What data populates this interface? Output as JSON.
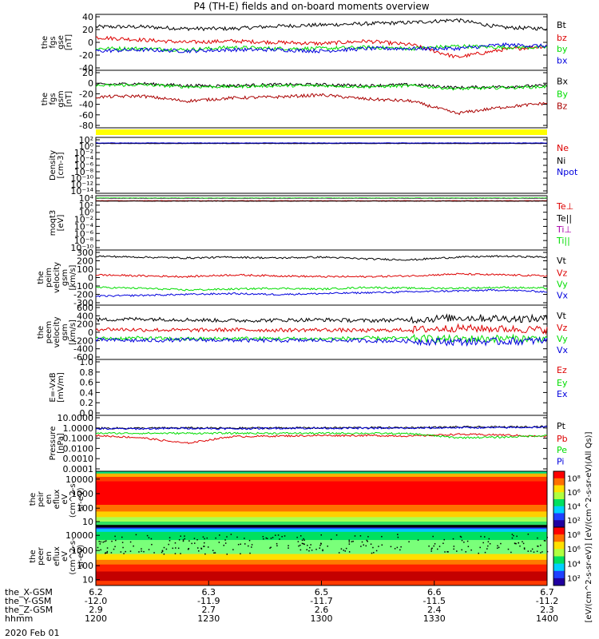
{
  "title": "P4 (TH-E) fields and on-board moments overview",
  "date": "2020 Feb 01",
  "chart_data": [
    {
      "id": "fgs_gse",
      "type": "line",
      "ylabel": [
        "the",
        "fgs",
        "gse",
        "[nT]"
      ],
      "yticks": [
        40,
        20,
        0,
        -20,
        -40
      ],
      "ylim": [
        -45,
        45
      ],
      "series": [
        {
          "name": "Bt",
          "color": "#000000",
          "base": [
            25,
            25,
            22,
            22,
            26,
            28,
            30,
            32,
            36,
            24,
            22
          ]
        },
        {
          "name": "bz",
          "color": "#dd0000",
          "base": [
            8,
            4,
            0,
            2,
            0,
            -2,
            2,
            -4,
            -24,
            -12,
            -6
          ]
        },
        {
          "name": "by",
          "color": "#00dd00",
          "base": [
            -10,
            -10,
            -12,
            -8,
            -10,
            -10,
            -8,
            -10,
            -6,
            -8,
            -8
          ]
        },
        {
          "name": "bx",
          "color": "#0000dd",
          "base": [
            -14,
            -12,
            -14,
            -12,
            -12,
            -14,
            -10,
            -10,
            -10,
            -4,
            -6
          ]
        }
      ]
    },
    {
      "id": "fgs_gsm",
      "type": "line",
      "ylabel": [
        "the",
        "fgs",
        "gsm",
        "[nT]"
      ],
      "yticks": [
        20,
        0,
        -20,
        -40,
        -60,
        -80
      ],
      "ylim": [
        -90,
        22
      ],
      "series": [
        {
          "name": "Bx",
          "color": "#000000",
          "base": [
            -6,
            -4,
            -8,
            -8,
            -6,
            -6,
            -8,
            -6,
            -12,
            -10,
            -8
          ]
        },
        {
          "name": "By",
          "color": "#00dd00",
          "base": [
            -8,
            -6,
            -10,
            -10,
            -8,
            -8,
            -10,
            -8,
            -14,
            -12,
            -10
          ]
        },
        {
          "name": "Bz",
          "color": "#aa0000",
          "base": [
            -30,
            -28,
            -38,
            -32,
            -30,
            -26,
            -34,
            -38,
            -62,
            -50,
            -42
          ]
        }
      ]
    },
    {
      "id": "density",
      "type": "line",
      "yscale": "log",
      "ylabel": [
        "Density",
        "[cm-3]"
      ],
      "yticks": [
        "10²",
        "10⁰",
        "10⁻²",
        "10⁻⁴",
        "10⁻⁶",
        "10⁻⁸",
        "10⁻¹⁰",
        "10⁻¹²",
        "10⁻¹⁴"
      ],
      "ylim": [
        -14,
        2
      ],
      "series": [
        {
          "name": "Ne",
          "color": "#dd0000",
          "base": [
            0.3,
            0.3,
            0.3,
            0.3,
            0.3,
            0.3,
            0.3,
            0.3,
            0.3,
            0.3,
            0.3
          ]
        },
        {
          "name": "Ni",
          "color": "#000000",
          "base": [
            0.25,
            0.25,
            0.25,
            0.25,
            0.25,
            0.25,
            0.25,
            0.25,
            0.25,
            0.25,
            0.25
          ]
        },
        {
          "name": "Npot",
          "color": "#0000dd",
          "base": [
            0.4,
            0.4,
            0.4,
            0.4,
            0.4,
            0.4,
            0.4,
            0.4,
            0.4,
            0.4,
            0.4
          ]
        }
      ]
    },
    {
      "id": "temperature",
      "type": "line",
      "yscale": "log",
      "ylabel": [
        "moqt3",
        "[eV]"
      ],
      "yticks": [
        "10⁴",
        "10²",
        "10⁰",
        "10⁻²",
        "10⁻⁴",
        "10⁻⁶",
        "10⁻⁸",
        "10⁻¹⁰"
      ],
      "ylim": [
        -10,
        4
      ],
      "series": [
        {
          "name": "Te⊥",
          "color": "#dd0000",
          "base": [
            2.7,
            2.7,
            2.7,
            2.7,
            2.7,
            2.7,
            2.7,
            2.7,
            2.7,
            2.7,
            2.7
          ]
        },
        {
          "name": "Te||",
          "color": "#000000",
          "base": [
            2.6,
            2.6,
            2.6,
            2.6,
            2.6,
            2.6,
            2.6,
            2.6,
            2.6,
            2.6,
            2.6
          ]
        },
        {
          "name": "Ti⊥",
          "color": "#aa00aa",
          "base": [
            3.3,
            3.3,
            3.3,
            3.3,
            3.3,
            3.3,
            3.3,
            3.3,
            3.3,
            3.3,
            3.3
          ]
        },
        {
          "name": "Ti||",
          "color": "#00dd00",
          "base": [
            3.4,
            3.4,
            3.4,
            3.4,
            3.4,
            3.4,
            3.4,
            3.4,
            3.4,
            3.4,
            3.4
          ]
        }
      ]
    },
    {
      "id": "peim_velocity",
      "type": "line",
      "ylabel": [
        "the",
        "peim",
        "velocity",
        "gsm",
        "[km/s]"
      ],
      "yticks": [
        300,
        200,
        100,
        0,
        -100,
        -200,
        -300
      ],
      "ylim": [
        -300,
        320
      ],
      "series": [
        {
          "name": "Vt",
          "color": "#000000",
          "base": [
            250,
            240,
            230,
            240,
            230,
            240,
            220,
            210,
            240,
            250,
            240
          ]
        },
        {
          "name": "Vz",
          "color": "#dd0000",
          "base": [
            40,
            30,
            20,
            40,
            30,
            20,
            20,
            30,
            50,
            40,
            30
          ]
        },
        {
          "name": "Vy",
          "color": "#00dd00",
          "base": [
            -100,
            -110,
            -130,
            -120,
            -110,
            -120,
            -100,
            -110,
            -110,
            -100,
            -110
          ]
        },
        {
          "name": "Vx",
          "color": "#0000dd",
          "base": [
            -200,
            -190,
            -180,
            -170,
            -180,
            -170,
            -160,
            -150,
            -140,
            -130,
            -150
          ]
        }
      ]
    },
    {
      "id": "peem_velocity",
      "type": "line",
      "ylabel": [
        "the",
        "peem",
        "velocity",
        "gsm",
        "[km/s]"
      ],
      "yticks": [
        600,
        400,
        200,
        0,
        -200,
        -400,
        -600
      ],
      "ylim": [
        -650,
        650
      ],
      "series": [
        {
          "name": "Vt",
          "color": "#000000",
          "base": [
            300,
            320,
            300,
            280,
            290,
            300,
            280,
            300,
            350,
            330,
            320
          ]
        },
        {
          "name": "Vz",
          "color": "#dd0000",
          "base": [
            80,
            60,
            50,
            60,
            50,
            60,
            40,
            60,
            100,
            80,
            60
          ]
        },
        {
          "name": "Vy",
          "color": "#00dd00",
          "base": [
            -150,
            -140,
            -160,
            -150,
            -150,
            -160,
            -140,
            -150,
            -160,
            -150,
            -150
          ]
        },
        {
          "name": "Vx",
          "color": "#0000dd",
          "base": [
            -180,
            -200,
            -180,
            -190,
            -200,
            -190,
            -200,
            -210,
            -230,
            -220,
            -200
          ]
        }
      ]
    },
    {
      "id": "efield",
      "type": "line",
      "ylabel": [
        "E=-VxB",
        "[mV/m]"
      ],
      "yticks": [
        "1.0",
        "0.8",
        "0.6",
        "0.4",
        "0.2",
        "0.0"
      ],
      "ylim": [
        0,
        1
      ],
      "series": [
        {
          "name": "Ez",
          "color": "#dd0000",
          "base": []
        },
        {
          "name": "Ey",
          "color": "#00dd00",
          "base": []
        },
        {
          "name": "Ex",
          "color": "#0000dd",
          "base": []
        }
      ]
    },
    {
      "id": "pressure",
      "type": "line",
      "yscale": "log",
      "ylabel": [
        "Pressure",
        "[nPa]"
      ],
      "yticks": [
        "10.0000",
        "1.0000",
        "0.1000",
        "0.0100",
        "0.0010",
        "0.0001"
      ],
      "ylim": [
        -4,
        1
      ],
      "series": [
        {
          "name": "Pt",
          "color": "#000000",
          "base": [
            -0.15,
            -0.15,
            -0.12,
            -0.15,
            -0.12,
            -0.12,
            -0.1,
            -0.1,
            -0.05,
            -0.05,
            0.0
          ]
        },
        {
          "name": "Pb",
          "color": "#dd0000",
          "base": [
            -0.8,
            -1.0,
            -1.5,
            -0.9,
            -0.85,
            -0.8,
            -0.8,
            -0.85,
            -0.7,
            -0.75,
            -0.9
          ]
        },
        {
          "name": "Pe",
          "color": "#00dd00",
          "base": [
            -0.6,
            -0.6,
            -0.6,
            -0.6,
            -0.6,
            -0.6,
            -0.6,
            -0.65,
            -1.0,
            -0.95,
            -0.8
          ]
        },
        {
          "name": "Pi",
          "color": "#0000dd",
          "base": [
            -0.2,
            -0.2,
            -0.15,
            -0.2,
            -0.15,
            -0.15,
            -0.15,
            -0.15,
            -0.1,
            -0.1,
            -0.05
          ]
        }
      ]
    },
    {
      "id": "peir_spectrogram",
      "type": "heatmap",
      "ylabel": [
        "the",
        "peir",
        "en",
        "eflux",
        "eV",
        "(cm^2-s-",
        "sr-eV)"
      ],
      "yticks": [
        "10000",
        "1000",
        "100",
        "10"
      ],
      "colorbar_ticks": [
        "10⁸",
        "10⁶",
        "10⁴",
        "10²"
      ]
    },
    {
      "id": "peer_spectrogram",
      "type": "heatmap",
      "ylabel": [
        "the",
        "peer",
        "en",
        "eflux",
        "eV",
        "(cm^2-s-",
        "sr-eV)"
      ],
      "yticks": [
        "10000",
        "1000",
        "100",
        "10"
      ],
      "colorbar_ticks": [
        "10⁸",
        "10⁶",
        "10⁴",
        "10²"
      ]
    }
  ],
  "colorbar_label": "[eV/(cm^2-s-sr-eV)] [eV/(cm^2-s-sr-eV)(All Qs)]",
  "xaxis": {
    "row_labels": [
      "the_X-GSM",
      "the_Y-GSM",
      "the_Z-GSM",
      "hhmm"
    ],
    "ticks": [
      {
        "x": "6.2",
        "y": "-12.0",
        "z": "2.9",
        "hhmm": "1200"
      },
      {
        "x": "6.3",
        "y": "-11.9",
        "z": "2.7",
        "hhmm": "1230"
      },
      {
        "x": "6.5",
        "y": "-11.7",
        "z": "2.6",
        "hhmm": "1300"
      },
      {
        "x": "6.6",
        "y": "-11.5",
        "z": "2.4",
        "hhmm": "1330"
      },
      {
        "x": "6.7",
        "y": "-11.2",
        "z": "2.3",
        "hhmm": "1400"
      }
    ]
  }
}
